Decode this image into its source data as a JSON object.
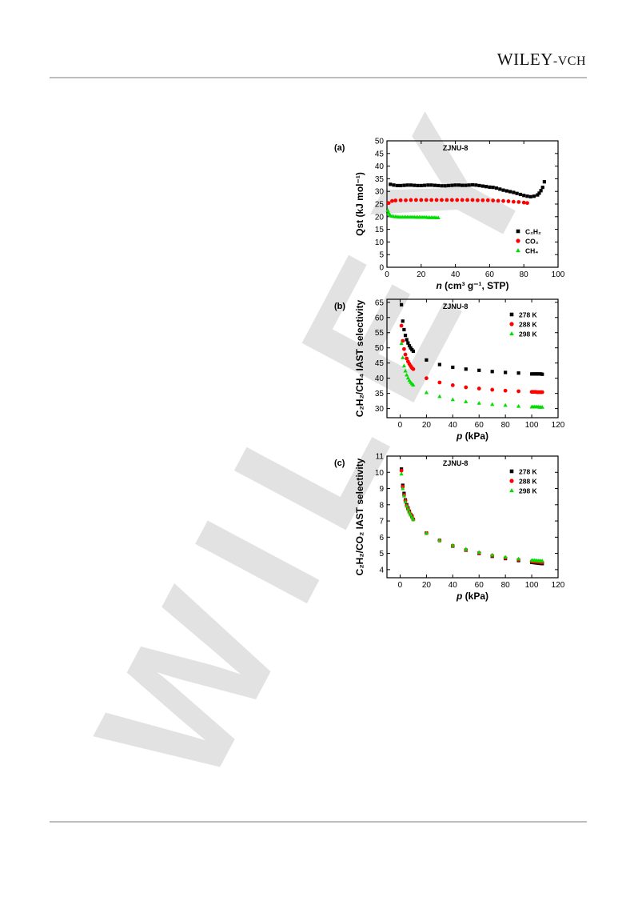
{
  "header": {
    "publisher_main": "WILEY",
    "publisher_sep": "-",
    "publisher_suffix": "VCH"
  },
  "watermark": {
    "text": "WILEY"
  },
  "colors": {
    "c2h2": "#000000",
    "co2": "#ff0000",
    "ch4": "#00dd00",
    "rule": "#bdbdbd"
  },
  "chart_data": [
    {
      "type": "scatter",
      "panel_label": "(a)",
      "title": "ZJNU-8",
      "xlabel_italic": "n",
      "xlabel": " (cm³ g⁻¹, STP)",
      "ylabel": "Qst (kJ mol⁻¹)",
      "xlim": [
        0,
        100
      ],
      "ylim": [
        0,
        50
      ],
      "xticks": [
        0,
        20,
        40,
        60,
        80,
        100
      ],
      "yticks": [
        0,
        5,
        10,
        15,
        20,
        25,
        30,
        35,
        40,
        45,
        50
      ],
      "legend_position": "bottom-right",
      "series": [
        {
          "name": "C2H2",
          "legend_html": "C₂H₂",
          "marker": "square",
          "color": "#000000",
          "x": [
            2,
            4,
            6,
            8,
            10,
            12,
            14,
            16,
            18,
            20,
            22,
            24,
            26,
            28,
            30,
            32,
            34,
            36,
            38,
            40,
            42,
            44,
            46,
            48,
            50,
            52,
            54,
            56,
            58,
            60,
            62,
            64,
            66,
            68,
            70,
            72,
            74,
            76,
            78,
            80,
            82,
            84,
            86,
            88,
            89,
            90,
            91,
            92
          ],
          "y": [
            32.8,
            32.5,
            32.3,
            32.3,
            32.4,
            32.5,
            32.5,
            32.4,
            32.3,
            32.3,
            32.4,
            32.5,
            32.5,
            32.4,
            32.3,
            32.2,
            32.2,
            32.3,
            32.4,
            32.5,
            32.5,
            32.4,
            32.4,
            32.5,
            32.6,
            32.5,
            32.3,
            32.1,
            31.9,
            31.7,
            31.6,
            31.3,
            30.9,
            30.5,
            30.2,
            29.9,
            29.6,
            29.2,
            28.8,
            28.4,
            28.1,
            27.9,
            28.1,
            28.6,
            29.3,
            30.3,
            31.6,
            33.8
          ]
        },
        {
          "name": "CO2",
          "legend_html": "CO₂",
          "marker": "circle",
          "color": "#ff0000",
          "x": [
            1,
            3,
            5,
            8,
            11,
            14,
            17,
            20,
            23,
            26,
            29,
            32,
            35,
            38,
            41,
            44,
            47,
            50,
            53,
            56,
            59,
            62,
            65,
            68,
            71,
            74,
            77,
            80,
            82
          ],
          "y": [
            25.4,
            26.2,
            26.4,
            26.5,
            26.5,
            26.6,
            26.6,
            26.6,
            26.6,
            26.6,
            26.6,
            26.6,
            26.6,
            26.6,
            26.6,
            26.6,
            26.6,
            26.6,
            26.5,
            26.5,
            26.5,
            26.4,
            26.3,
            26.2,
            26.1,
            25.9,
            25.8,
            25.6,
            25.4
          ]
        },
        {
          "name": "CH4",
          "legend_html": "CH₄",
          "marker": "triangle",
          "color": "#00dd00",
          "x": [
            0.5,
            1,
            1.5,
            2,
            3,
            4,
            5,
            6,
            7,
            8,
            9,
            10,
            11,
            12,
            13,
            14,
            15,
            16,
            17,
            18,
            19,
            20,
            21,
            22,
            23,
            24,
            25,
            26,
            27,
            28,
            29,
            30
          ],
          "y": [
            22.5,
            21.6,
            20.9,
            20.5,
            20.2,
            20.1,
            20.0,
            20.0,
            19.9,
            19.9,
            19.9,
            19.9,
            19.9,
            19.9,
            19.9,
            19.9,
            19.9,
            19.9,
            19.8,
            19.8,
            19.8,
            19.8,
            19.8,
            19.8,
            19.8,
            19.7,
            19.7,
            19.7,
            19.7,
            19.7,
            19.6,
            19.6
          ]
        }
      ]
    },
    {
      "type": "scatter",
      "panel_label": "(b)",
      "title": "ZJNU-8",
      "xlabel_italic": "p",
      "xlabel": " (kPa)",
      "ylabel": "C₂H₂/CH₄ IAST selectivity",
      "xlim": [
        -10,
        120
      ],
      "ylim": [
        27,
        66
      ],
      "xticks": [
        0,
        20,
        40,
        60,
        80,
        100,
        120
      ],
      "yticks": [
        30,
        35,
        40,
        45,
        50,
        55,
        60,
        65
      ],
      "legend_position": "top-right",
      "series": [
        {
          "name": "278 K",
          "marker": "square",
          "color": "#000000",
          "x": [
            1,
            2,
            3,
            4,
            5,
            6,
            7,
            8,
            9,
            10,
            20,
            30,
            40,
            50,
            60,
            70,
            80,
            90,
            100,
            101,
            102,
            103,
            104,
            105,
            106,
            107,
            108
          ],
          "y": [
            64.2,
            58.8,
            56.0,
            54.1,
            52.7,
            51.6,
            50.7,
            50.0,
            49.4,
            48.9,
            46.0,
            44.5,
            43.6,
            43.0,
            42.6,
            42.2,
            41.9,
            41.7,
            41.4,
            41.4,
            41.4,
            41.4,
            41.4,
            41.4,
            41.4,
            41.4,
            41.3
          ]
        },
        {
          "name": "288 K",
          "marker": "circle",
          "color": "#ff0000",
          "x": [
            1,
            2,
            3,
            4,
            5,
            6,
            7,
            8,
            9,
            10,
            20,
            30,
            40,
            50,
            60,
            70,
            80,
            90,
            100,
            101,
            102,
            103,
            104,
            105,
            106,
            107,
            108
          ],
          "y": [
            57.3,
            52.3,
            49.6,
            47.8,
            46.5,
            45.5,
            44.7,
            44.0,
            43.4,
            43.0,
            40.0,
            38.6,
            37.7,
            37.0,
            36.6,
            36.2,
            35.9,
            35.7,
            35.5,
            35.5,
            35.5,
            35.5,
            35.4,
            35.4,
            35.4,
            35.4,
            35.4
          ]
        },
        {
          "name": "298 K",
          "marker": "triangle",
          "color": "#00dd00",
          "x": [
            1,
            2,
            3,
            4,
            5,
            6,
            7,
            8,
            9,
            10,
            20,
            30,
            40,
            50,
            60,
            70,
            80,
            90,
            100,
            101,
            102,
            103,
            104,
            105,
            106,
            107,
            108
          ],
          "y": [
            51.5,
            46.8,
            44.1,
            42.4,
            41.1,
            40.1,
            39.3,
            38.7,
            38.2,
            37.8,
            35.3,
            34.0,
            33.0,
            32.3,
            31.8,
            31.4,
            31.1,
            30.8,
            30.6,
            30.6,
            30.6,
            30.6,
            30.6,
            30.6,
            30.5,
            30.5,
            30.5
          ]
        }
      ]
    },
    {
      "type": "scatter",
      "panel_label": "(c)",
      "title": "ZJNU-8",
      "xlabel_italic": "p",
      "xlabel": " (kPa)",
      "ylabel": "C₂H₂/CO₂ IAST selectivity",
      "xlim": [
        -10,
        120
      ],
      "ylim": [
        3.5,
        11
      ],
      "xticks": [
        0,
        20,
        40,
        60,
        80,
        100,
        120
      ],
      "yticks": [
        4,
        5,
        6,
        7,
        8,
        9,
        10,
        11
      ],
      "legend_position": "top-right",
      "series": [
        {
          "name": "278 K",
          "marker": "square",
          "color": "#000000",
          "x": [
            1,
            2,
            3,
            4,
            5,
            6,
            7,
            8,
            9,
            10,
            20,
            30,
            40,
            50,
            60,
            70,
            80,
            90,
            100,
            101,
            102,
            103,
            104,
            105,
            106,
            107,
            108
          ],
          "y": [
            10.2,
            9.2,
            8.7,
            8.3,
            8.0,
            7.8,
            7.6,
            7.4,
            7.3,
            7.1,
            6.25,
            5.8,
            5.45,
            5.2,
            5.0,
            4.82,
            4.68,
            4.56,
            4.45,
            4.44,
            4.43,
            4.42,
            4.41,
            4.4,
            4.39,
            4.38,
            4.37
          ]
        },
        {
          "name": "288 K",
          "marker": "circle",
          "color": "#ff0000",
          "x": [
            1,
            2,
            3,
            4,
            5,
            6,
            7,
            8,
            9,
            10,
            20,
            30,
            40,
            50,
            60,
            70,
            80,
            90,
            100,
            101,
            102,
            103,
            104,
            105,
            106,
            107,
            108
          ],
          "y": [
            10.1,
            9.1,
            8.6,
            8.25,
            7.95,
            7.75,
            7.55,
            7.4,
            7.25,
            7.1,
            6.25,
            5.8,
            5.47,
            5.22,
            5.03,
            4.86,
            4.72,
            4.61,
            4.51,
            4.5,
            4.49,
            4.49,
            4.48,
            4.47,
            4.47,
            4.46,
            4.45
          ]
        },
        {
          "name": "298 K",
          "marker": "triangle",
          "color": "#00dd00",
          "x": [
            1,
            2,
            3,
            4,
            5,
            6,
            7,
            8,
            9,
            10,
            20,
            30,
            40,
            50,
            60,
            70,
            80,
            90,
            100,
            101,
            102,
            103,
            104,
            105,
            106,
            107,
            108
          ],
          "y": [
            9.9,
            9.0,
            8.55,
            8.2,
            7.92,
            7.72,
            7.53,
            7.38,
            7.23,
            7.1,
            6.25,
            5.82,
            5.5,
            5.26,
            5.07,
            4.91,
            4.78,
            4.67,
            4.58,
            4.57,
            4.57,
            4.56,
            4.56,
            4.55,
            4.55,
            4.54,
            4.54
          ]
        }
      ]
    }
  ]
}
